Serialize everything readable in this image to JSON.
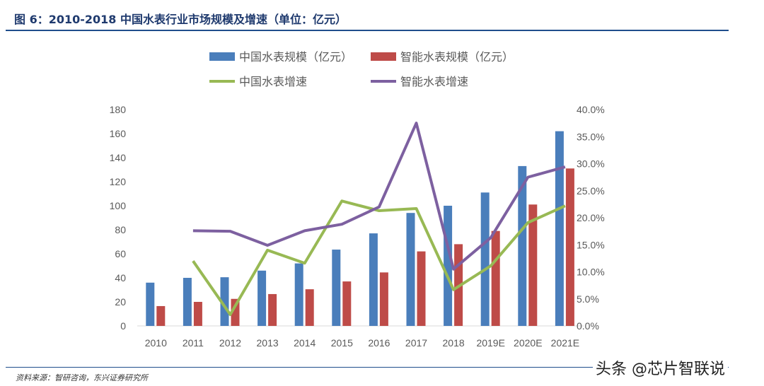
{
  "header": {
    "title": "图 6：2010-2018 中国水表行业市场规模及增速（单位：亿元）"
  },
  "footer": {
    "source": "资料来源：智研咨询，东兴证券研究所",
    "watermark": "头条 @芯片智联说"
  },
  "chart_data": {
    "type": "bar+line",
    "categories": [
      "2010",
      "2011",
      "2012",
      "2013",
      "2014",
      "2015",
      "2016",
      "2017",
      "2018",
      "2019E",
      "2020E",
      "2021E"
    ],
    "left_axis": {
      "range": [
        0,
        180
      ],
      "ticks": [
        "0",
        "20",
        "40",
        "60",
        "80",
        "100",
        "120",
        "140",
        "160",
        "180"
      ]
    },
    "right_axis": {
      "range": [
        0,
        40
      ],
      "ticks": [
        "0.0%",
        "5.0%",
        "10.0%",
        "15.0%",
        "20.0%",
        "25.0%",
        "30.0%",
        "35.0%",
        "40.0%"
      ]
    },
    "legend_position": "top",
    "grid": false,
    "series": [
      {
        "name": "中国水表规模（亿元）",
        "type": "bar",
        "axis": "left",
        "color": "#4a7ebb",
        "values": [
          36,
          40,
          40.5,
          46,
          52,
          63.5,
          77,
          94,
          100,
          111,
          133,
          162
        ]
      },
      {
        "name": "智能水表规模（亿元）",
        "type": "bar",
        "axis": "left",
        "color": "#be4b48",
        "values": [
          16.5,
          20,
          22.5,
          26.5,
          30.5,
          37,
          44.5,
          62,
          68,
          79,
          101,
          131
        ]
      },
      {
        "name": "中国水表增速",
        "type": "line",
        "axis": "right",
        "color": "#98b954",
        "values": [
          null,
          12.0,
          2.1,
          14.0,
          11.6,
          23.1,
          21.3,
          21.7,
          6.7,
          11.1,
          19.1,
          22.2
        ]
      },
      {
        "name": "智能水表增速",
        "type": "line",
        "axis": "right",
        "color": "#7d60a0",
        "values": [
          null,
          17.6,
          17.5,
          14.9,
          17.6,
          18.8,
          22.0,
          37.5,
          10.5,
          16.3,
          27.5,
          29.4
        ]
      }
    ]
  }
}
